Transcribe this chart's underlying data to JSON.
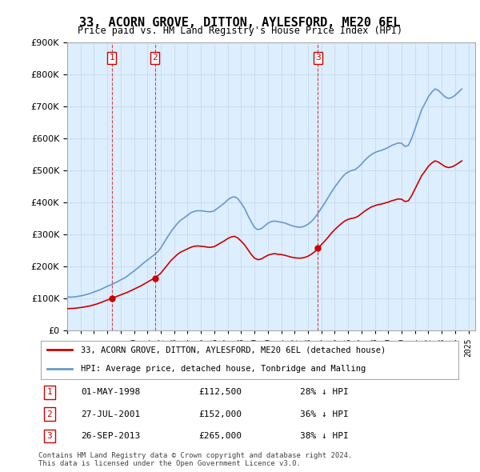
{
  "title": "33, ACORN GROVE, DITTON, AYLESFORD, ME20 6EL",
  "subtitle": "Price paid vs. HM Land Registry's House Price Index (HPI)",
  "ylabel_vals": [
    "£0",
    "£100K",
    "£200K",
    "£300K",
    "£400K",
    "£500K",
    "£600K",
    "£700K",
    "£800K",
    "£900K"
  ],
  "ylim": [
    0,
    900000
  ],
  "xlim_start": 1995.0,
  "xlim_end": 2025.5,
  "hpi_color": "#6699cc",
  "price_color": "#cc0000",
  "sale_marker_color": "#cc0000",
  "sale_label_color": "#cc0000",
  "grid_color": "#ccddee",
  "background_color": "#ddeeff",
  "legend_entries": [
    "33, ACORN GROVE, DITTON, AYLESFORD, ME20 6EL (detached house)",
    "HPI: Average price, detached house, Tonbridge and Malling"
  ],
  "transactions": [
    {
      "num": 1,
      "date": "01-MAY-1998",
      "price": 112500,
      "pct": "28%",
      "dir": "↓",
      "x": 1998.33
    },
    {
      "num": 2,
      "date": "27-JUL-2001",
      "price": 152000,
      "pct": "36%",
      "dir": "↓",
      "x": 2001.56
    },
    {
      "num": 3,
      "date": "26-SEP-2013",
      "price": 265000,
      "pct": "38%",
      "dir": "↓",
      "x": 2013.73
    }
  ],
  "footer": "Contains HM Land Registry data © Crown copyright and database right 2024.\nThis data is licensed under the Open Government Licence v3.0.",
  "hpi_data_x": [
    1995.0,
    1995.25,
    1995.5,
    1995.75,
    1996.0,
    1996.25,
    1996.5,
    1996.75,
    1997.0,
    1997.25,
    1997.5,
    1997.75,
    1998.0,
    1998.25,
    1998.5,
    1998.75,
    1999.0,
    1999.25,
    1999.5,
    1999.75,
    2000.0,
    2000.25,
    2000.5,
    2000.75,
    2001.0,
    2001.25,
    2001.5,
    2001.75,
    2002.0,
    2002.25,
    2002.5,
    2002.75,
    2003.0,
    2003.25,
    2003.5,
    2003.75,
    2004.0,
    2004.25,
    2004.5,
    2004.75,
    2005.0,
    2005.25,
    2005.5,
    2005.75,
    2006.0,
    2006.25,
    2006.5,
    2006.75,
    2007.0,
    2007.25,
    2007.5,
    2007.75,
    2008.0,
    2008.25,
    2008.5,
    2008.75,
    2009.0,
    2009.25,
    2009.5,
    2009.75,
    2010.0,
    2010.25,
    2010.5,
    2010.75,
    2011.0,
    2011.25,
    2011.5,
    2011.75,
    2012.0,
    2012.25,
    2012.5,
    2012.75,
    2013.0,
    2013.25,
    2013.5,
    2013.75,
    2014.0,
    2014.25,
    2014.5,
    2014.75,
    2015.0,
    2015.25,
    2015.5,
    2015.75,
    2016.0,
    2016.25,
    2016.5,
    2016.75,
    2017.0,
    2017.25,
    2017.5,
    2017.75,
    2018.0,
    2018.25,
    2018.5,
    2018.75,
    2019.0,
    2019.25,
    2019.5,
    2019.75,
    2020.0,
    2020.25,
    2020.5,
    2020.75,
    2021.0,
    2021.25,
    2021.5,
    2021.75,
    2022.0,
    2022.25,
    2022.5,
    2022.75,
    2023.0,
    2023.25,
    2023.5,
    2023.75,
    2024.0,
    2024.25,
    2024.5
  ],
  "hpi_data_y": [
    105000,
    104000,
    104500,
    106000,
    108000,
    110000,
    113000,
    116000,
    120000,
    124000,
    128000,
    133000,
    138000,
    142000,
    147000,
    152000,
    158000,
    163000,
    170000,
    178000,
    186000,
    194000,
    203000,
    212000,
    220000,
    228000,
    236000,
    245000,
    258000,
    275000,
    292000,
    308000,
    322000,
    335000,
    345000,
    352000,
    360000,
    368000,
    372000,
    374000,
    374000,
    373000,
    371000,
    371000,
    374000,
    382000,
    390000,
    398000,
    408000,
    415000,
    418000,
    412000,
    398000,
    382000,
    360000,
    340000,
    322000,
    315000,
    318000,
    326000,
    335000,
    340000,
    342000,
    340000,
    338000,
    336000,
    332000,
    328000,
    325000,
    323000,
    323000,
    326000,
    332000,
    340000,
    352000,
    366000,
    382000,
    398000,
    415000,
    432000,
    448000,
    462000,
    476000,
    488000,
    495000,
    500000,
    502000,
    510000,
    520000,
    532000,
    542000,
    550000,
    556000,
    560000,
    563000,
    567000,
    572000,
    578000,
    582000,
    586000,
    585000,
    575000,
    578000,
    600000,
    630000,
    660000,
    690000,
    710000,
    730000,
    745000,
    755000,
    750000,
    740000,
    730000,
    725000,
    728000,
    735000,
    745000,
    755000
  ],
  "price_data_x": [
    1995.0,
    1995.25,
    1995.5,
    1995.75,
    1996.0,
    1996.25,
    1996.5,
    1996.75,
    1997.0,
    1997.25,
    1997.5,
    1997.75,
    1998.0,
    1998.25,
    1998.5,
    1998.75,
    1999.0,
    1999.25,
    1999.5,
    1999.75,
    2000.0,
    2000.25,
    2000.5,
    2000.75,
    2001.0,
    2001.25,
    2001.5,
    2001.75,
    2002.0,
    2002.25,
    2002.5,
    2002.75,
    2003.0,
    2003.25,
    2003.5,
    2003.75,
    2004.0,
    2004.25,
    2004.5,
    2004.75,
    2005.0,
    2005.25,
    2005.5,
    2005.75,
    2006.0,
    2006.25,
    2006.5,
    2006.75,
    2007.0,
    2007.25,
    2007.5,
    2007.75,
    2008.0,
    2008.25,
    2008.5,
    2008.75,
    2009.0,
    2009.25,
    2009.5,
    2009.75,
    2010.0,
    2010.25,
    2010.5,
    2010.75,
    2011.0,
    2011.25,
    2011.5,
    2011.75,
    2012.0,
    2012.25,
    2012.5,
    2012.75,
    2013.0,
    2013.25,
    2013.5,
    2013.75,
    2014.0,
    2014.25,
    2014.5,
    2014.75,
    2015.0,
    2015.25,
    2015.5,
    2015.75,
    2016.0,
    2016.25,
    2016.5,
    2016.75,
    2017.0,
    2017.25,
    2017.5,
    2017.75,
    2018.0,
    2018.25,
    2018.5,
    2018.75,
    2019.0,
    2019.25,
    2019.5,
    2019.75,
    2020.0,
    2020.25,
    2020.5,
    2020.75,
    2021.0,
    2021.25,
    2021.5,
    2021.75,
    2022.0,
    2022.25,
    2022.5,
    2022.75,
    2023.0,
    2023.25,
    2023.5,
    2023.75,
    2024.0,
    2024.25,
    2024.5
  ],
  "price_data_y": [
    68000,
    68500,
    69000,
    70000,
    71500,
    73000,
    75000,
    77000,
    80000,
    83000,
    87000,
    91000,
    95000,
    99000,
    103000,
    107000,
    111000,
    115000,
    119000,
    124000,
    129000,
    134000,
    139000,
    145000,
    151000,
    157000,
    163000,
    170000,
    179000,
    192000,
    205000,
    218000,
    228000,
    238000,
    245000,
    250000,
    255000,
    260000,
    263000,
    264000,
    263000,
    262000,
    260000,
    260000,
    262000,
    268000,
    274000,
    280000,
    287000,
    292000,
    294000,
    289000,
    279000,
    268000,
    253000,
    238000,
    226000,
    221000,
    223000,
    229000,
    235000,
    238000,
    240000,
    238000,
    237000,
    235000,
    232000,
    229000,
    227000,
    226000,
    226000,
    228000,
    232000,
    238000,
    246000,
    257000,
    268000,
    279000,
    291000,
    304000,
    315000,
    325000,
    334000,
    342000,
    347000,
    350000,
    352000,
    357000,
    365000,
    373000,
    380000,
    386000,
    390000,
    393000,
    395000,
    398000,
    401000,
    405000,
    408000,
    411000,
    410000,
    403000,
    405000,
    421000,
    442000,
    463000,
    484000,
    498000,
    513000,
    523000,
    530000,
    526000,
    519000,
    512000,
    509000,
    511000,
    516000,
    523000,
    530000
  ]
}
